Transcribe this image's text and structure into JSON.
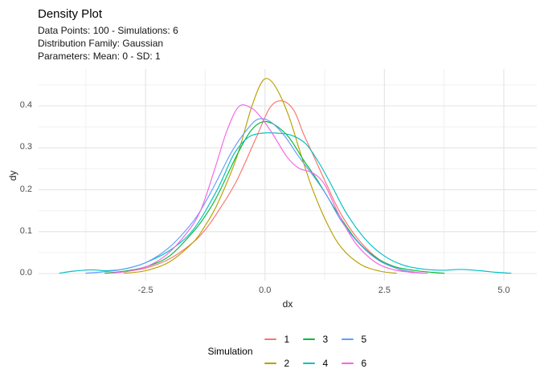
{
  "header": {
    "title": "Density Plot",
    "subtitle_lines": [
      "Data Points: 100 - Simulations: 6",
      "Distribution Family: Gaussian",
      "Parameters: Mean: 0 - SD: 1"
    ]
  },
  "chart_data": {
    "type": "line",
    "title": "Density Plot",
    "subtitle": "Data Points: 100 - Simulations: 6 / Distribution Family: Gaussian / Parameters: Mean: 0 - SD: 1",
    "xlabel": "dx",
    "ylabel": "dy",
    "xlim": [
      -4.74,
      5.69
    ],
    "ylim": [
      -0.017,
      0.488
    ],
    "x_ticks": {
      "values": [
        -2.5,
        0.0,
        2.5,
        5.0
      ],
      "labels": [
        "-2.5",
        "0.0",
        "2.5",
        "5.0"
      ]
    },
    "y_ticks": {
      "values": [
        0.0,
        0.1,
        0.2,
        0.3,
        0.4
      ],
      "labels": [
        "0.0",
        "0.1",
        "0.2",
        "0.3",
        "0.4"
      ]
    },
    "grid": {
      "major": true,
      "minor": true
    },
    "colors": {
      "grid_major": "#e4e4e4",
      "grid_minor": "#f0f0f0",
      "axis_text": "#4d4d4d"
    },
    "legend": {
      "title": "Simulation",
      "position": "bottom",
      "entries": [
        {
          "label": "1",
          "color": "#F8766D"
        },
        {
          "label": "2",
          "color": "#B79F00"
        },
        {
          "label": "3",
          "color": "#00BA38"
        },
        {
          "label": "4",
          "color": "#00BFC4"
        },
        {
          "label": "5",
          "color": "#619CFF"
        },
        {
          "label": "6",
          "color": "#F564E3"
        }
      ]
    },
    "series": [
      {
        "name": "1",
        "color": "#F8766D",
        "points": [
          [
            -3.3,
            0.001
          ],
          [
            -3.0,
            0.004
          ],
          [
            -2.5,
            0.013
          ],
          [
            -2.0,
            0.035
          ],
          [
            -1.5,
            0.075
          ],
          [
            -1.25,
            0.105
          ],
          [
            -1.0,
            0.145
          ],
          [
            -0.6,
            0.22
          ],
          [
            -0.2,
            0.32
          ],
          [
            0.1,
            0.395
          ],
          [
            0.35,
            0.412
          ],
          [
            0.6,
            0.39
          ],
          [
            0.8,
            0.335
          ],
          [
            1.0,
            0.285
          ],
          [
            1.3,
            0.21
          ],
          [
            1.6,
            0.14
          ],
          [
            2.0,
            0.075
          ],
          [
            2.4,
            0.033
          ],
          [
            2.8,
            0.01
          ],
          [
            3.1,
            0.002
          ]
        ]
      },
      {
        "name": "2",
        "color": "#B79F00",
        "points": [
          [
            -2.95,
            0.001
          ],
          [
            -2.5,
            0.007
          ],
          [
            -2.0,
            0.028
          ],
          [
            -1.5,
            0.075
          ],
          [
            -1.25,
            0.115
          ],
          [
            -1.0,
            0.165
          ],
          [
            -0.6,
            0.275
          ],
          [
            -0.3,
            0.39
          ],
          [
            -0.1,
            0.45
          ],
          [
            0.05,
            0.465
          ],
          [
            0.25,
            0.44
          ],
          [
            0.5,
            0.375
          ],
          [
            0.75,
            0.285
          ],
          [
            1.0,
            0.2
          ],
          [
            1.3,
            0.12
          ],
          [
            1.6,
            0.062
          ],
          [
            2.0,
            0.022
          ],
          [
            2.4,
            0.006
          ],
          [
            2.75,
            0.001
          ]
        ]
      },
      {
        "name": "3",
        "color": "#00BA38",
        "points": [
          [
            -3.35,
            0.001
          ],
          [
            -3.0,
            0.005
          ],
          [
            -2.5,
            0.016
          ],
          [
            -2.0,
            0.042
          ],
          [
            -1.5,
            0.1
          ],
          [
            -1.25,
            0.138
          ],
          [
            -1.0,
            0.185
          ],
          [
            -0.6,
            0.28
          ],
          [
            -0.3,
            0.34
          ],
          [
            -0.05,
            0.362
          ],
          [
            0.2,
            0.355
          ],
          [
            0.5,
            0.325
          ],
          [
            0.8,
            0.272
          ],
          [
            1.1,
            0.222
          ],
          [
            1.5,
            0.148
          ],
          [
            1.9,
            0.082
          ],
          [
            2.3,
            0.04
          ],
          [
            2.7,
            0.017
          ],
          [
            3.1,
            0.008
          ],
          [
            3.5,
            0.003
          ],
          [
            3.75,
            0.001
          ]
        ]
      },
      {
        "name": "4",
        "color": "#00BFC4",
        "points": [
          [
            -4.3,
            0.001
          ],
          [
            -4.0,
            0.006
          ],
          [
            -3.65,
            0.009
          ],
          [
            -3.3,
            0.007
          ],
          [
            -2.9,
            0.012
          ],
          [
            -2.5,
            0.026
          ],
          [
            -2.0,
            0.055
          ],
          [
            -1.5,
            0.105
          ],
          [
            -1.0,
            0.2
          ],
          [
            -0.65,
            0.285
          ],
          [
            -0.35,
            0.325
          ],
          [
            -0.05,
            0.335
          ],
          [
            0.25,
            0.335
          ],
          [
            0.55,
            0.33
          ],
          [
            0.85,
            0.31
          ],
          [
            1.1,
            0.27
          ],
          [
            1.35,
            0.22
          ],
          [
            1.7,
            0.145
          ],
          [
            2.1,
            0.082
          ],
          [
            2.5,
            0.042
          ],
          [
            2.9,
            0.02
          ],
          [
            3.3,
            0.011
          ],
          [
            3.7,
            0.008
          ],
          [
            4.1,
            0.01
          ],
          [
            4.5,
            0.007
          ],
          [
            4.85,
            0.003
          ],
          [
            5.15,
            0.001
          ]
        ]
      },
      {
        "name": "5",
        "color": "#619CFF",
        "points": [
          [
            -3.75,
            0.001
          ],
          [
            -3.4,
            0.004
          ],
          [
            -3.0,
            0.01
          ],
          [
            -2.5,
            0.026
          ],
          [
            -2.0,
            0.063
          ],
          [
            -1.5,
            0.125
          ],
          [
            -1.25,
            0.17
          ],
          [
            -1.0,
            0.223
          ],
          [
            -0.7,
            0.29
          ],
          [
            -0.4,
            0.34
          ],
          [
            -0.15,
            0.368
          ],
          [
            0.1,
            0.363
          ],
          [
            0.4,
            0.33
          ],
          [
            0.7,
            0.28
          ],
          [
            1.0,
            0.235
          ],
          [
            1.3,
            0.185
          ],
          [
            1.6,
            0.125
          ],
          [
            2.0,
            0.068
          ],
          [
            2.4,
            0.03
          ],
          [
            2.8,
            0.011
          ],
          [
            3.1,
            0.004
          ],
          [
            3.3,
            0.001
          ]
        ]
      },
      {
        "name": "6",
        "color": "#F564E3",
        "points": [
          [
            -3.25,
            0.001
          ],
          [
            -2.85,
            0.006
          ],
          [
            -2.45,
            0.018
          ],
          [
            -2.05,
            0.046
          ],
          [
            -1.65,
            0.095
          ],
          [
            -1.35,
            0.15
          ],
          [
            -1.05,
            0.25
          ],
          [
            -0.8,
            0.34
          ],
          [
            -0.55,
            0.398
          ],
          [
            -0.3,
            0.396
          ],
          [
            -0.1,
            0.375
          ],
          [
            0.15,
            0.335
          ],
          [
            0.45,
            0.28
          ],
          [
            0.7,
            0.252
          ],
          [
            1.0,
            0.24
          ],
          [
            1.25,
            0.212
          ],
          [
            1.55,
            0.14
          ],
          [
            1.9,
            0.072
          ],
          [
            2.3,
            0.028
          ],
          [
            2.7,
            0.009
          ],
          [
            3.1,
            0.003
          ],
          [
            3.4,
            0.001
          ]
        ]
      }
    ]
  }
}
